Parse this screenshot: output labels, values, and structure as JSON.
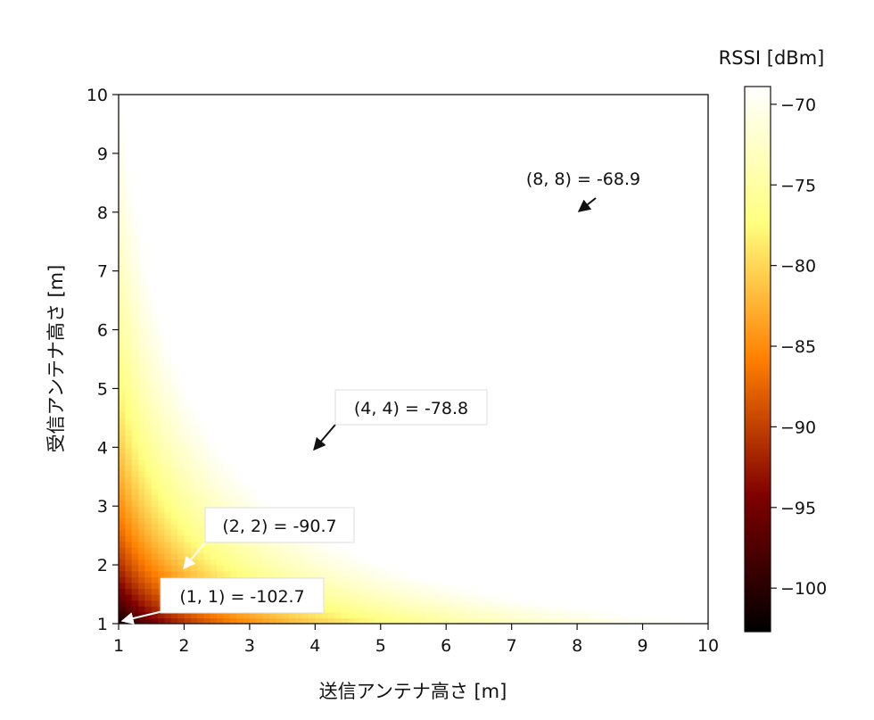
{
  "chart_data": {
    "type": "heatmap",
    "title": "",
    "xlabel": "送信アンテナ高さ [m]",
    "ylabel": "受信アンテナ高さ [m]",
    "xlim": [
      1,
      10
    ],
    "ylim": [
      1,
      10
    ],
    "x_ticks": [
      "1",
      "2",
      "3",
      "4",
      "5",
      "6",
      "7",
      "8",
      "9",
      "10"
    ],
    "y_ticks": [
      "1",
      "2",
      "3",
      "4",
      "5",
      "6",
      "7",
      "8",
      "9",
      "10"
    ],
    "colorbar": {
      "label": "RSSI [dBm]",
      "range": [
        -102.7,
        -68.9
      ],
      "ticks": [
        "−70",
        "−75",
        "−80",
        "−85",
        "−90",
        "−95",
        "−100"
      ],
      "tick_values": [
        -70,
        -75,
        -80,
        -85,
        -90,
        -95,
        -100
      ],
      "colormap": "afmhot"
    },
    "annotations": [
      {
        "x": 8,
        "y": 8,
        "value": -68.9,
        "label": "(8, 8) = -68.9",
        "box": false
      },
      {
        "x": 4,
        "y": 4,
        "value": -78.8,
        "label": "(4, 4) = -78.8",
        "box": true
      },
      {
        "x": 2,
        "y": 2,
        "value": -90.7,
        "label": "(2, 2) = -90.7",
        "box": true
      },
      {
        "x": 1,
        "y": 1,
        "value": -102.7,
        "label": "(1, 1) = -102.7",
        "box": true
      }
    ]
  }
}
